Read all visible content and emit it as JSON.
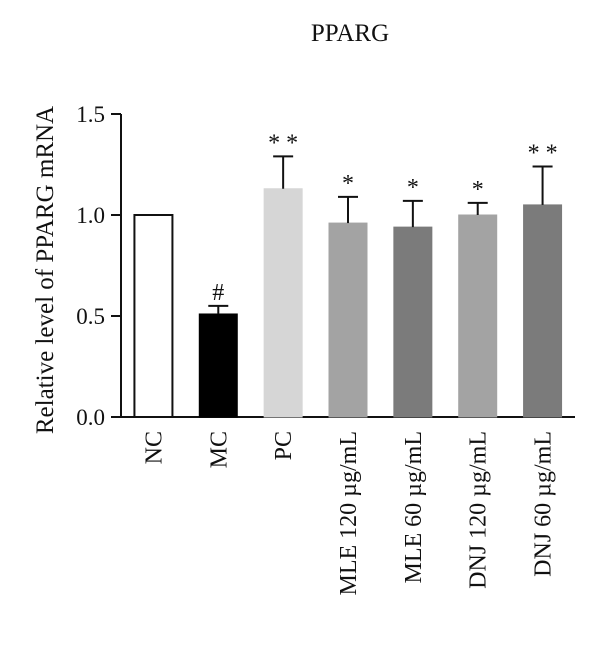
{
  "chart_data": {
    "type": "bar",
    "title": "PPARG",
    "xlabel": "",
    "ylabel": "Relative level of PPARG mRNA",
    "ylim": [
      0,
      1.5
    ],
    "yticks": [
      "0.0",
      "0.5",
      "1.0",
      "1.5"
    ],
    "grid": false,
    "categories": [
      "NC",
      "MC",
      "PC",
      "MLE 120 µg/mL",
      "MLE 60 µg/mL",
      "DNJ 120 µg/mL",
      "DNJ 60 µg/mL"
    ],
    "values": [
      1.0,
      0.51,
      1.13,
      0.96,
      0.94,
      1.0,
      1.05
    ],
    "error": [
      0.0,
      0.04,
      0.16,
      0.13,
      0.13,
      0.06,
      0.19
    ],
    "annotations": [
      "",
      "#",
      "* *",
      "*",
      "*",
      "*",
      "* *"
    ],
    "bar_fills": [
      "#ffffff",
      "#000000",
      "#d6d6d6",
      "#a3a3a3",
      "#7b7b7b",
      "#a3a3a3",
      "#7b7b7b"
    ],
    "bar_strokes": [
      "#111111",
      "#000000",
      "#d6d6d6",
      "#a3a3a3",
      "#7b7b7b",
      "#a3a3a3",
      "#7b7b7b"
    ]
  }
}
